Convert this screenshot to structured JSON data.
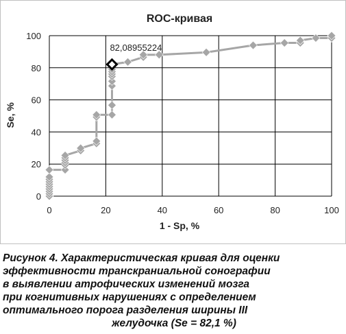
{
  "chart_data": {
    "type": "line",
    "title": "ROC-кривая",
    "xlabel": "1 - Sp, %",
    "ylabel": "Se, %",
    "xlim": [
      0,
      100
    ],
    "ylim": [
      0,
      100
    ],
    "x_ticks": [
      "0",
      "20",
      "40",
      "60",
      "80",
      "100"
    ],
    "y_ticks": [
      "0",
      "20",
      "40",
      "60",
      "80",
      "100"
    ],
    "grid": true,
    "legend": "none",
    "series": [
      {
        "color": "#a6a6a6",
        "marker": "diamond",
        "points": [
          [
            0,
            0
          ],
          [
            0,
            1.5
          ],
          [
            0,
            3
          ],
          [
            0,
            4.5
          ],
          [
            0,
            6
          ],
          [
            0,
            7.5
          ],
          [
            0,
            9
          ],
          [
            0,
            10.5
          ],
          [
            0,
            12
          ],
          [
            0,
            16.4
          ],
          [
            5.6,
            16.4
          ],
          [
            5.6,
            19.4
          ],
          [
            5.6,
            20.9
          ],
          [
            5.6,
            22.4
          ],
          [
            5.6,
            23.9
          ],
          [
            5.6,
            25.4
          ],
          [
            11.1,
            28.4
          ],
          [
            11.1,
            29.9
          ],
          [
            16.7,
            32.8
          ],
          [
            16.7,
            34.3
          ],
          [
            16.7,
            49.3
          ],
          [
            16.7,
            50.7
          ],
          [
            22.2,
            50.7
          ],
          [
            22.2,
            56.7
          ],
          [
            22.2,
            68.7
          ],
          [
            22.2,
            71.6
          ],
          [
            22.2,
            74.6
          ],
          [
            22.2,
            76.1
          ],
          [
            22.2,
            77.6
          ],
          [
            22.2,
            79.1
          ],
          [
            22.2,
            82.1
          ],
          [
            27.8,
            83.6
          ],
          [
            33.3,
            86.6
          ],
          [
            33.3,
            88.1
          ],
          [
            38.9,
            88.1
          ],
          [
            55.6,
            89.6
          ],
          [
            72.2,
            94.0
          ],
          [
            83.3,
            95.5
          ],
          [
            88.9,
            95.5
          ],
          [
            88.9,
            97.0
          ],
          [
            94.4,
            98.5
          ],
          [
            100,
            98.5
          ],
          [
            100,
            100
          ]
        ]
      }
    ],
    "highlight": {
      "x": 22.2,
      "y": 82.1,
      "label": "82,08955224",
      "color": "#000000"
    }
  },
  "caption": {
    "lines": [
      "Рисунок 4. Характеристическая кривая для оценки",
      "эффективности транскраниальной сонографии",
      "в выявлении атрофических изменений мозга",
      "при когнитивных нарушениях с определением",
      "оптимального порога разделения ширины III",
      "желудочка (Se = 82,1 %)"
    ]
  }
}
